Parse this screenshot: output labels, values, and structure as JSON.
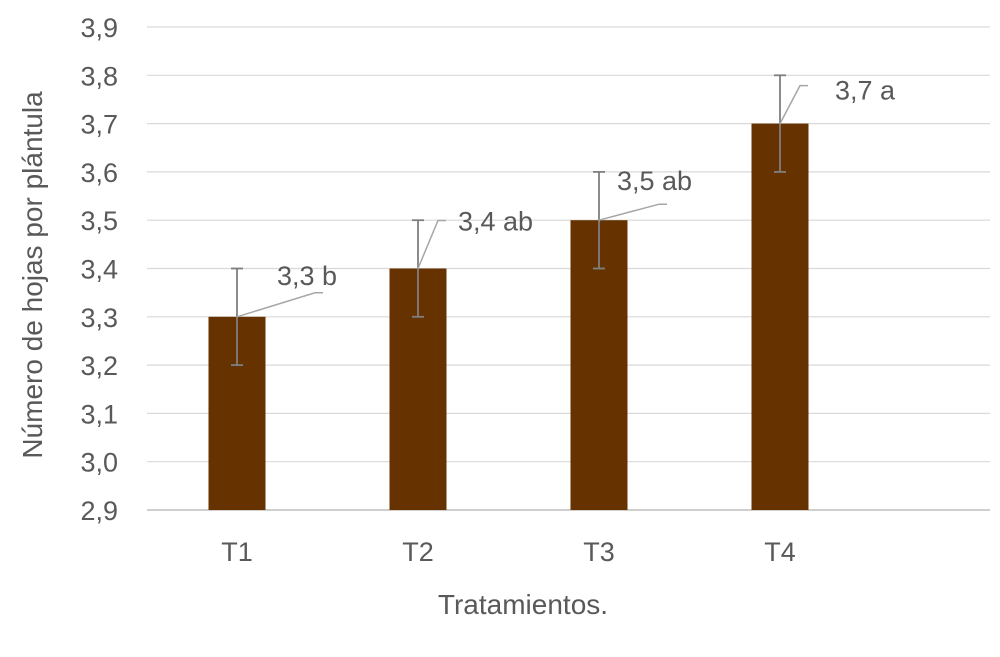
{
  "chart_data": {
    "type": "bar",
    "categories": [
      "T1",
      "T2",
      "T3",
      "T4"
    ],
    "values": [
      3.3,
      3.4,
      3.5,
      3.7
    ],
    "error_bars": [
      0.1,
      0.1,
      0.1,
      0.1
    ],
    "data_labels": [
      "3,3 b",
      "3,4 ab",
      "3,5 ab",
      "3,7 a"
    ],
    "ylim": [
      2.9,
      3.9
    ],
    "ytick_step": 0.1,
    "yticks": [
      "2,9",
      "3,0",
      "3,1",
      "3,2",
      "3,3",
      "3,4",
      "3,5",
      "3,6",
      "3,7",
      "3,8",
      "3,9"
    ],
    "xlabel": "Tratamientos.",
    "ylabel": "Número de hojas por plántula",
    "grid": true,
    "bar_color": "#663300",
    "grid_color": "#d9d9d9",
    "text_color": "#595959"
  }
}
